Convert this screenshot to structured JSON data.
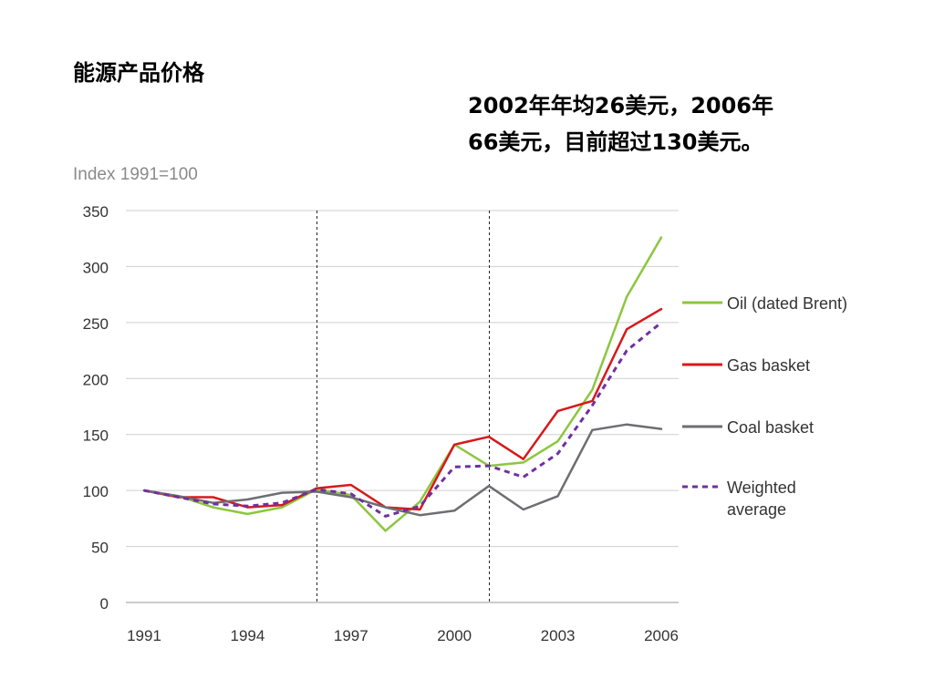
{
  "slide": {
    "title": "能源产品价格",
    "note_line1": "2002年年均26美元，2006年",
    "note_line2": "66美元，目前超过130美元。"
  },
  "chart_data": {
    "type": "line",
    "ylabel": "Index 1991=100",
    "ylim": [
      0,
      350
    ],
    "yticks": [
      0,
      50,
      100,
      150,
      200,
      250,
      300,
      350
    ],
    "xlim": [
      1991,
      2006
    ],
    "xticks": [
      1991,
      1994,
      1997,
      2000,
      2003,
      2006
    ],
    "x": [
      1991,
      1992,
      1993,
      1994,
      1995,
      1996,
      1997,
      1998,
      1999,
      2000,
      2001,
      2002,
      2003,
      2004,
      2005,
      2006
    ],
    "vlines": [
      1996,
      2001
    ],
    "grid": "horizontal",
    "legend_position": "right",
    "series": [
      {
        "name": "Oil (dated Brent)",
        "color": "#8cc63f",
        "style": "solid",
        "values": [
          100,
          95,
          85,
          79,
          85,
          101,
          96,
          64,
          90,
          141,
          122,
          125,
          144,
          190,
          273,
          326
        ]
      },
      {
        "name": "Gas basket",
        "color": "#d7191c",
        "style": "solid",
        "values": [
          100,
          94,
          94,
          85,
          87,
          102,
          105,
          85,
          83,
          141,
          148,
          128,
          171,
          180,
          244,
          262
        ]
      },
      {
        "name": "Coal basket",
        "color": "#6d6e71",
        "style": "solid",
        "values": [
          100,
          95,
          89,
          92,
          98,
          99,
          94,
          85,
          78,
          82,
          104,
          83,
          95,
          154,
          159,
          155
        ]
      },
      {
        "name": "Weighted\naverage",
        "color": "#7030a0",
        "style": "dashed",
        "values": [
          100,
          94,
          88,
          86,
          89,
          101,
          97,
          77,
          86,
          121,
          122,
          112,
          133,
          176,
          225,
          250
        ]
      }
    ]
  }
}
